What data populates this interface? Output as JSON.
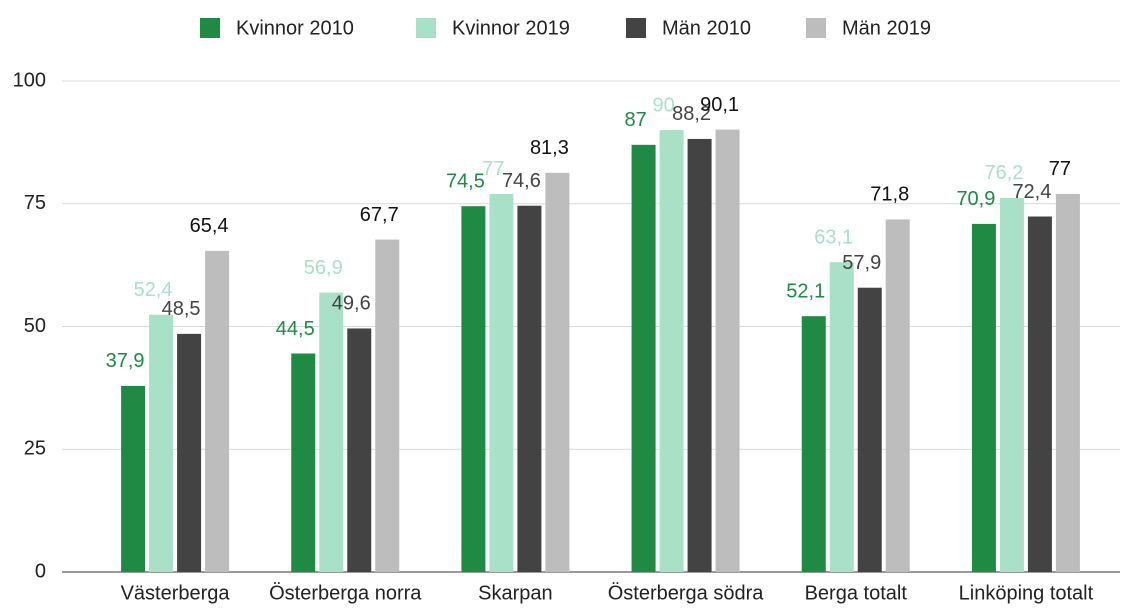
{
  "chart_data": {
    "type": "bar",
    "categories": [
      "Västerberga",
      "Österberga norra",
      "Skarpan",
      "Österberga södra",
      "Berga totalt",
      "Linköping totalt"
    ],
    "series": [
      {
        "name": "Kvinnor 2010",
        "color": "#1e8a44",
        "label_color": "#1e8a44",
        "values": [
          37.9,
          44.5,
          74.5,
          87,
          52.1,
          70.9
        ],
        "value_labels": [
          "37,9",
          "44,5",
          "74,5",
          "87",
          "52,1",
          "70,9"
        ]
      },
      {
        "name": "Kvinnor 2019",
        "color": "#a8e0c8",
        "label_color": "#a8e0c8",
        "values": [
          52.4,
          56.9,
          77,
          90,
          63.1,
          76.2
        ],
        "value_labels": [
          "52,4",
          "56,9",
          "77",
          "90",
          "63,1",
          "76,2"
        ]
      },
      {
        "name": "Män 2010",
        "color": "#434343",
        "label_color": "#444444",
        "values": [
          48.5,
          49.6,
          74.6,
          88.2,
          57.9,
          72.4
        ],
        "value_labels": [
          "48,5",
          "49,6",
          "74,6",
          "88,2",
          "57,9",
          "72,4"
        ]
      },
      {
        "name": "Män 2019",
        "color": "#bdbdbd",
        "label_color": "#111111",
        "values": [
          65.4,
          67.7,
          81.3,
          90.1,
          71.8,
          77
        ],
        "value_labels": [
          "65,4",
          "67,7",
          "81,3",
          "90,1",
          "71,8",
          "77"
        ]
      }
    ],
    "ylim": [
      0,
      100
    ],
    "yticks": [
      0,
      25,
      50,
      75,
      100
    ],
    "grid": true,
    "legend": "top"
  }
}
